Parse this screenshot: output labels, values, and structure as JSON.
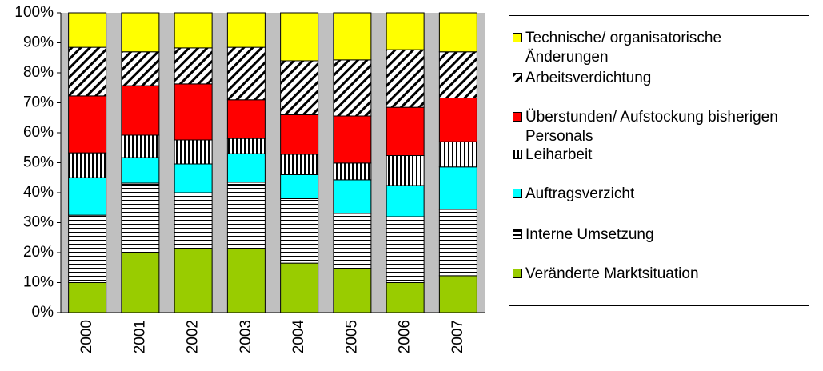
{
  "chart_data": {
    "type": "stacked_bar",
    "categories": [
      "2000",
      "2001",
      "2002",
      "2003",
      "2004",
      "2005",
      "2006",
      "2007"
    ],
    "series": [
      {
        "name": "Veränderte Marktsituation",
        "color": "#99cc00",
        "pattern": "solid",
        "values": [
          10,
          20,
          21.3,
          21.3,
          16.5,
          14.7,
          10,
          12.3
        ]
      },
      {
        "name": "Interne Umsetzung",
        "color": "#ffffff",
        "pattern": "horizontal",
        "values": [
          22.5,
          23.2,
          18.7,
          22.2,
          21.5,
          18.4,
          22,
          22.1
        ]
      },
      {
        "name": "Auftragsverzicht",
        "color": "#00ffff",
        "pattern": "solid",
        "values": [
          12.5,
          8.5,
          9.6,
          9.5,
          8,
          11.2,
          10.4,
          14.2
        ]
      },
      {
        "name": "Leiharbeit",
        "color": "#ffffff",
        "pattern": "vertical",
        "values": [
          8.3,
          7.5,
          8,
          5.1,
          6.8,
          5.6,
          10,
          8.4
        ]
      },
      {
        "name": "Überstunden/ Aufstockung bisherigen Personals",
        "color": "#ff0000",
        "pattern": "solid",
        "values": [
          19,
          16.5,
          18.7,
          12.9,
          13.2,
          15.7,
          16.1,
          14.6
        ]
      },
      {
        "name": "Arbeitsverdichtung",
        "color": "#ffffff",
        "pattern": "diagonal",
        "values": [
          16.2,
          11.3,
          12,
          17.5,
          18,
          18.7,
          19.2,
          15.4
        ]
      },
      {
        "name": "Technische/ organisatorische Änderungen",
        "color": "#ffff00",
        "pattern": "solid",
        "values": [
          11.5,
          13,
          11.7,
          11.5,
          16,
          15.7,
          12.3,
          13
        ]
      }
    ],
    "ylim": [
      0,
      100
    ],
    "yticks": [
      {
        "value": 0,
        "label": "0%"
      },
      {
        "value": 10,
        "label": "10%"
      },
      {
        "value": 20,
        "label": "20%"
      },
      {
        "value": 30,
        "label": "30%"
      },
      {
        "value": 40,
        "label": "40%"
      },
      {
        "value": 50,
        "label": "50%"
      },
      {
        "value": 60,
        "label": "60%"
      },
      {
        "value": 70,
        "label": "70%"
      },
      {
        "value": 80,
        "label": "80%"
      },
      {
        "value": 90,
        "label": "90%"
      },
      {
        "value": 100,
        "label": "100%"
      }
    ],
    "legend": "right"
  }
}
